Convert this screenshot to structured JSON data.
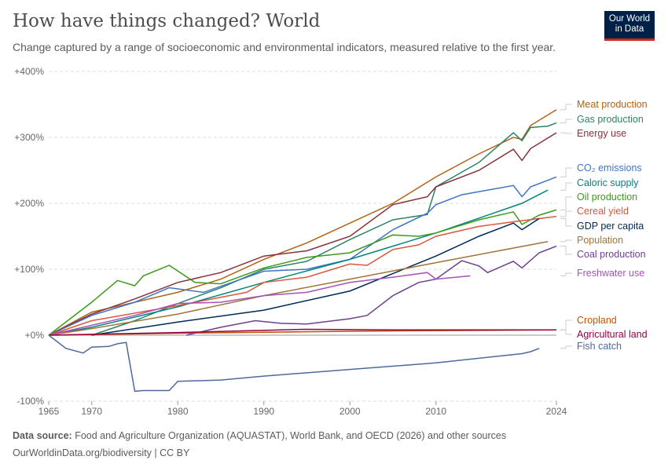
{
  "header": {
    "title": "How have things changed? World",
    "subtitle": "Change captured by a range of socioeconomic and environmental indicators, measured relative to the first year.",
    "logo": "Our World in Data"
  },
  "footer": {
    "source_label": "Data source:",
    "source_text": "Food and Agriculture Organization (AQUASTAT), World Bank, and OECD (2026) and other sources",
    "credit": "OurWorldinData.org/biodiversity | CC BY"
  },
  "chart_data": {
    "type": "line",
    "title": "How have things changed? World",
    "xlim": [
      1965,
      2024
    ],
    "ylim": [
      -100,
      400
    ],
    "y_ticks": [
      "-100%",
      "+0%",
      "+100%",
      "+200%",
      "+300%",
      "+400%"
    ],
    "y_tick_values": [
      -100,
      0,
      100,
      200,
      300,
      400
    ],
    "x_ticks": [
      "1965",
      "1970",
      "1980",
      "1990",
      "2000",
      "2010",
      "2024"
    ],
    "x_tick_values": [
      1965,
      1970,
      1980,
      1990,
      2000,
      2010,
      2024
    ],
    "grid": true,
    "legend": "right",
    "series": [
      {
        "name": "Meat production",
        "color": "#b16214",
        "x": [
          1965,
          1970,
          1975,
          1980,
          1985,
          1990,
          1995,
          2000,
          2005,
          2010,
          2015,
          2019,
          2020,
          2021,
          2024
        ],
        "y": [
          0,
          35,
          50,
          65,
          85,
          115,
          140,
          170,
          200,
          240,
          275,
          300,
          297,
          318,
          342
        ]
      },
      {
        "name": "Gas production",
        "color": "#2c8465",
        "x": [
          1970,
          1975,
          1980,
          1985,
          1990,
          1995,
          2000,
          2005,
          2009,
          2010,
          2015,
          2019,
          2020,
          2021,
          2023,
          2024
        ],
        "y": [
          0,
          22,
          48,
          72,
          100,
          112,
          145,
          175,
          183,
          225,
          262,
          307,
          295,
          315,
          317,
          322
        ]
      },
      {
        "name": "Energy use",
        "color": "#883039",
        "x": [
          1965,
          1970,
          1975,
          1980,
          1985,
          1990,
          1995,
          2000,
          2005,
          2009,
          2010,
          2015,
          2019,
          2020,
          2021,
          2024
        ],
        "y": [
          0,
          32,
          55,
          80,
          95,
          120,
          128,
          150,
          198,
          210,
          225,
          250,
          282,
          265,
          283,
          307
        ]
      },
      {
        "name": "CO₂ emissions",
        "color": "#3f74c6",
        "x": [
          1965,
          1970,
          1975,
          1979,
          1983,
          1990,
          1995,
          2000,
          2005,
          2009,
          2010,
          2013,
          2019,
          2020,
          2021,
          2024
        ],
        "y": [
          0,
          30,
          50,
          72,
          65,
          97,
          100,
          115,
          160,
          185,
          198,
          213,
          227,
          210,
          225,
          240
        ]
      },
      {
        "name": "Caloric supply",
        "color": "#00847e",
        "x": [
          1965,
          1970,
          1980,
          1990,
          2000,
          2010,
          2020,
          2023
        ],
        "y": [
          0,
          12,
          43,
          80,
          115,
          155,
          200,
          220
        ]
      },
      {
        "name": "Oil production",
        "color": "#3e9a1a",
        "x": [
          1965,
          1970,
          1973,
          1975,
          1976,
          1979,
          1982,
          1985,
          1990,
          1995,
          2000,
          2005,
          2008,
          2010,
          2015,
          2019,
          2020,
          2022,
          2024
        ],
        "y": [
          0,
          50,
          83,
          75,
          90,
          106,
          80,
          78,
          102,
          118,
          125,
          152,
          150,
          155,
          175,
          187,
          168,
          182,
          190
        ]
      },
      {
        "name": "Cereal yield",
        "color": "#d9573c",
        "x": [
          1965,
          1970,
          1980,
          1988,
          1990,
          1995,
          2000,
          2002,
          2005,
          2008,
          2010,
          2015,
          2019,
          2024
        ],
        "y": [
          0,
          22,
          45,
          65,
          80,
          88,
          108,
          106,
          130,
          137,
          150,
          165,
          172,
          180
        ]
      },
      {
        "name": "GDP per capita",
        "color": "#00295b",
        "x": [
          1970,
          1980,
          1990,
          2000,
          2010,
          2015,
          2019,
          2020,
          2022
        ],
        "y": [
          0,
          20,
          38,
          67,
          120,
          150,
          170,
          160,
          177
        ]
      },
      {
        "name": "Population",
        "color": "#a0743a",
        "x": [
          1965,
          1970,
          1980,
          1990,
          2000,
          2010,
          2023
        ],
        "y": [
          0,
          10,
          32,
          60,
          85,
          110,
          142
        ]
      },
      {
        "name": "Coal production",
        "color": "#6d3e91",
        "x": [
          1981,
          1985,
          1989,
          1992,
          1995,
          2000,
          2002,
          2005,
          2008,
          2010,
          2013,
          2015,
          2016,
          2019,
          2020,
          2022,
          2024
        ],
        "y": [
          0,
          12,
          22,
          18,
          17,
          25,
          30,
          60,
          80,
          85,
          113,
          105,
          95,
          112,
          102,
          125,
          135
        ]
      },
      {
        "name": "Freshwater use",
        "color": "#a652ba",
        "x": [
          1965,
          1970,
          1975,
          1980,
          1985,
          1990,
          1995,
          2000,
          2005,
          2009,
          2010,
          2014
        ],
        "y": [
          0,
          15,
          30,
          48,
          50,
          60,
          65,
          80,
          88,
          95,
          85,
          90
        ]
      },
      {
        "name": "Cropland",
        "color": "#c15309",
        "x": [
          1965,
          1980,
          2000,
          2024
        ],
        "y": [
          0,
          3,
          6,
          8
        ]
      },
      {
        "name": "Agricultural land",
        "color": "#970046",
        "x": [
          1965,
          1980,
          1995,
          2005,
          2024
        ],
        "y": [
          0,
          4,
          9,
          8,
          8
        ]
      },
      {
        "name": "Fish catch",
        "color": "#4c6a9c",
        "x": [
          1965,
          1967,
          1969,
          1970,
          1972,
          1973,
          1974,
          1975,
          1976,
          1979,
          1980,
          1985,
          1990,
          2000,
          2010,
          2020,
          2021,
          2022
        ],
        "y": [
          0,
          -20,
          -27,
          -18,
          -17,
          -13,
          -11,
          -85,
          -84,
          -84,
          -70,
          -68,
          -62,
          -52,
          -42,
          -28,
          -25,
          -20
        ]
      }
    ]
  }
}
